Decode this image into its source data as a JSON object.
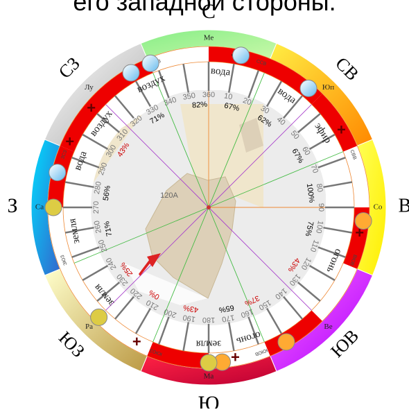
{
  "caption": "его западной стороны.",
  "directions": {
    "N": "С",
    "NE": "СВ",
    "E": "В",
    "SE": "ЮВ",
    "S": "Ю",
    "SW": "ЮЗ",
    "W": "З",
    "NW": "СЗ"
  },
  "ring_labels": {
    "north": "Ме",
    "north_east": "Юп",
    "east": "Со",
    "south_east": "Ве",
    "south": "Ма",
    "south_west": "Ра",
    "west": "Са",
    "north_west": "Лу"
  },
  "sector_codes": [
    "ССЗ",
    "ССВ",
    "СВВ",
    "ВЮВ",
    "ЮЮВ",
    "ЮЮЗ",
    "ЗЮЗ",
    "ЗСЗ"
  ],
  "plus_marks": [
    "+",
    "+",
    "+",
    "+",
    "+",
    "+",
    "+",
    "+"
  ],
  "elements": [
    {
      "label": "вода",
      "angle": 5
    },
    {
      "label": "вода",
      "angle": 35
    },
    {
      "label": "эфир",
      "angle": 57
    },
    {
      "label": "огонь",
      "angle": 113
    },
    {
      "label": "огонь",
      "angle": 163
    },
    {
      "label": "земля",
      "angle": 180
    },
    {
      "label": "земля",
      "angle": 230
    },
    {
      "label": "земля",
      "angle": 260
    },
    {
      "label": "вода",
      "angle": 290
    },
    {
      "label": "воздух",
      "angle": 308
    },
    {
      "label": "воздух",
      "angle": 335
    }
  ],
  "percentages": [
    {
      "value": "82%",
      "angle": 355,
      "color": "#000000"
    },
    {
      "value": "67%",
      "angle": 13,
      "color": "#000000"
    },
    {
      "value": "62%",
      "angle": 33,
      "color": "#000000"
    },
    {
      "value": "67%",
      "angle": 60,
      "color": "#000000"
    },
    {
      "value": "100%",
      "angle": 82,
      "color": "#000000"
    },
    {
      "value": "75%",
      "angle": 102,
      "color": "#000000"
    },
    {
      "value": "43%",
      "angle": 124,
      "color": "#cc0000"
    },
    {
      "value": "37%",
      "angle": 155,
      "color": "#cc0000"
    },
    {
      "value": "65%",
      "angle": 170,
      "color": "#000000"
    },
    {
      "value": "43%",
      "angle": 190,
      "color": "#cc0000"
    },
    {
      "value": "0%",
      "angle": 212,
      "color": "#cc0000"
    },
    {
      "value": "25%",
      "angle": 233,
      "color": "#cc0000"
    },
    {
      "value": "71%",
      "angle": 258,
      "color": "#000000"
    },
    {
      "value": "56%",
      "angle": 278,
      "color": "#000000"
    },
    {
      "value": "43%",
      "angle": 304,
      "color": "#cc0000"
    },
    {
      "value": "71%",
      "angle": 330,
      "color": "#000000"
    }
  ],
  "degree_labels": [
    "10",
    "20",
    "30",
    "40",
    "50",
    "60",
    "70",
    "80",
    "90",
    "100",
    "110",
    "120",
    "130",
    "140",
    "150",
    "160",
    "170",
    "180",
    "190",
    "200",
    "210",
    "220",
    "230",
    "240",
    "250",
    "260",
    "270",
    "280",
    "290",
    "300",
    "310",
    "320",
    "330",
    "340",
    "350",
    "360"
  ],
  "map_label": "120A",
  "colors": {
    "red": "#ee0000",
    "orange_line": "#ee8833",
    "green_line": "#44bb44",
    "purple_line": "#aa44cc"
  }
}
